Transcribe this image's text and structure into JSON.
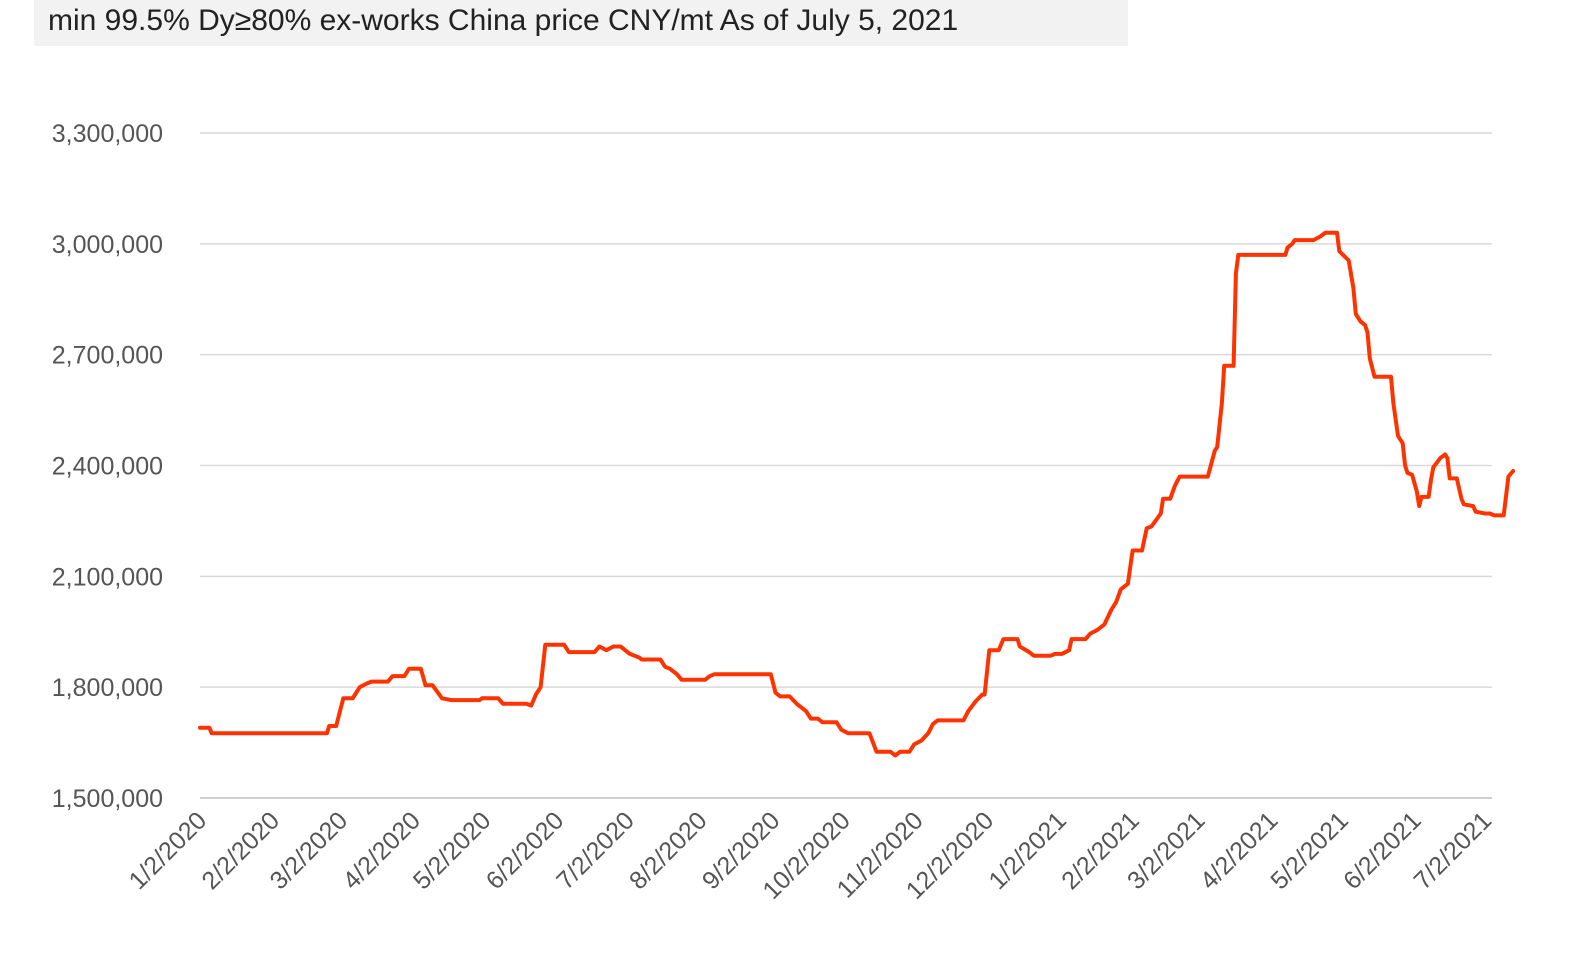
{
  "header": {
    "title": "min 99.5% Dy≥80%   ex-works China price   CNY/mt   As of July 5, 2021"
  },
  "chart_data": {
    "type": "line",
    "title": "min 99.5% Dy≥80%   ex-works China price   CNY/mt   As of July 5, 2021",
    "xlabel": "",
    "ylabel": "",
    "ylim": [
      1500000,
      3300000
    ],
    "yticks": [
      1500000,
      1800000,
      2100000,
      2400000,
      2700000,
      3000000,
      3300000
    ],
    "ytick_labels": [
      "1,500,000",
      "1,800,000",
      "2,100,000",
      "2,400,000",
      "2,700,000",
      "3,000,000",
      "3,300,000"
    ],
    "xlim": [
      "2020-01-02",
      "2021-07-05"
    ],
    "xticks": [
      "2020-01-02",
      "2020-02-02",
      "2020-03-02",
      "2020-04-02",
      "2020-05-02",
      "2020-06-02",
      "2020-07-02",
      "2020-08-02",
      "2020-09-02",
      "2020-10-02",
      "2020-11-02",
      "2020-12-02",
      "2021-01-02",
      "2021-02-02",
      "2021-03-02",
      "2021-04-02",
      "2021-05-02",
      "2021-06-02",
      "2021-07-02"
    ],
    "xtick_labels": [
      "1/2/2020",
      "2/2/2020",
      "3/2/2020",
      "4/2/2020",
      "5/2/2020",
      "6/2/2020",
      "7/2/2020",
      "8/2/2020",
      "9/2/2020",
      "10/2/2020",
      "11/2/2020",
      "12/2/2020",
      "1/2/2021",
      "2/2/2021",
      "3/2/2021",
      "4/2/2021",
      "5/2/2021",
      "6/2/2021",
      "7/2/2021"
    ],
    "grid": "horizontal",
    "colors": {
      "line": "#ff3300",
      "grid": "#d9d9d9",
      "axis": "#bfbfbf"
    },
    "series": [
      {
        "points": [
          [
            "2020-01-02",
            1690000
          ],
          [
            "2020-01-06",
            1690000
          ],
          [
            "2020-01-07",
            1675000
          ],
          [
            "2020-02-12",
            1675000
          ],
          [
            "2020-02-25",
            1675000
          ],
          [
            "2020-02-26",
            1695000
          ],
          [
            "2020-02-29",
            1695000
          ],
          [
            "2020-03-03",
            1770000
          ],
          [
            "2020-03-07",
            1770000
          ],
          [
            "2020-03-10",
            1800000
          ],
          [
            "2020-03-13",
            1810000
          ],
          [
            "2020-03-15",
            1815000
          ],
          [
            "2020-03-22",
            1815000
          ],
          [
            "2020-03-24",
            1830000
          ],
          [
            "2020-03-29",
            1830000
          ],
          [
            "2020-03-31",
            1850000
          ],
          [
            "2020-04-05",
            1850000
          ],
          [
            "2020-04-07",
            1805000
          ],
          [
            "2020-04-10",
            1805000
          ],
          [
            "2020-04-14",
            1770000
          ],
          [
            "2020-04-18",
            1765000
          ],
          [
            "2020-04-30",
            1765000
          ],
          [
            "2020-05-01",
            1770000
          ],
          [
            "2020-05-08",
            1770000
          ],
          [
            "2020-05-10",
            1755000
          ],
          [
            "2020-05-20",
            1755000
          ],
          [
            "2020-05-22",
            1750000
          ],
          [
            "2020-05-24",
            1780000
          ],
          [
            "2020-05-26",
            1800000
          ],
          [
            "2020-05-28",
            1915000
          ],
          [
            "2020-06-02",
            1915000
          ],
          [
            "2020-06-05",
            1915000
          ],
          [
            "2020-06-07",
            1895000
          ],
          [
            "2020-06-18",
            1895000
          ],
          [
            "2020-06-20",
            1910000
          ],
          [
            "2020-06-23",
            1900000
          ],
          [
            "2020-06-26",
            1910000
          ],
          [
            "2020-06-29",
            1910000
          ],
          [
            "2020-07-03",
            1890000
          ],
          [
            "2020-07-07",
            1880000
          ],
          [
            "2020-07-08",
            1875000
          ],
          [
            "2020-07-16",
            1875000
          ],
          [
            "2020-07-18",
            1855000
          ],
          [
            "2020-07-20",
            1850000
          ],
          [
            "2020-07-23",
            1835000
          ],
          [
            "2020-07-25",
            1820000
          ],
          [
            "2020-08-04",
            1820000
          ],
          [
            "2020-08-06",
            1830000
          ],
          [
            "2020-08-08",
            1835000
          ],
          [
            "2020-09-01",
            1835000
          ],
          [
            "2020-09-03",
            1785000
          ],
          [
            "2020-09-05",
            1775000
          ],
          [
            "2020-09-09",
            1775000
          ],
          [
            "2020-09-12",
            1755000
          ],
          [
            "2020-09-16",
            1735000
          ],
          [
            "2020-09-18",
            1715000
          ],
          [
            "2020-09-21",
            1715000
          ],
          [
            "2020-09-23",
            1705000
          ],
          [
            "2020-09-29",
            1705000
          ],
          [
            "2020-10-01",
            1685000
          ],
          [
            "2020-10-04",
            1675000
          ],
          [
            "2020-10-13",
            1675000
          ],
          [
            "2020-10-16",
            1625000
          ],
          [
            "2020-10-22",
            1625000
          ],
          [
            "2020-10-24",
            1615000
          ],
          [
            "2020-10-26",
            1625000
          ],
          [
            "2020-10-30",
            1625000
          ],
          [
            "2020-11-01",
            1645000
          ],
          [
            "2020-11-04",
            1655000
          ],
          [
            "2020-11-07",
            1675000
          ],
          [
            "2020-11-09",
            1700000
          ],
          [
            "2020-11-11",
            1710000
          ],
          [
            "2020-11-22",
            1710000
          ],
          [
            "2020-11-24",
            1735000
          ],
          [
            "2020-11-27",
            1760000
          ],
          [
            "2020-11-30",
            1780000
          ],
          [
            "2020-12-01",
            1780000
          ],
          [
            "2020-12-03",
            1900000
          ],
          [
            "2020-12-07",
            1900000
          ],
          [
            "2020-12-09",
            1930000
          ],
          [
            "2020-12-15",
            1930000
          ],
          [
            "2020-12-16",
            1910000
          ],
          [
            "2020-12-20",
            1895000
          ],
          [
            "2020-12-22",
            1885000
          ],
          [
            "2020-12-29",
            1885000
          ],
          [
            "2020-12-31",
            1890000
          ],
          [
            "2021-01-03",
            1890000
          ],
          [
            "2021-01-06",
            1900000
          ],
          [
            "2021-01-07",
            1930000
          ],
          [
            "2021-01-13",
            1930000
          ],
          [
            "2021-01-15",
            1945000
          ],
          [
            "2021-01-18",
            1955000
          ],
          [
            "2021-01-21",
            1970000
          ],
          [
            "2021-01-24",
            2010000
          ],
          [
            "2021-01-26",
            2030000
          ],
          [
            "2021-01-28",
            2065000
          ],
          [
            "2021-01-31",
            2080000
          ],
          [
            "2021-02-02",
            2170000
          ],
          [
            "2021-02-06",
            2170000
          ],
          [
            "2021-02-08",
            2230000
          ],
          [
            "2021-02-10",
            2235000
          ],
          [
            "2021-02-14",
            2270000
          ],
          [
            "2021-02-15",
            2310000
          ],
          [
            "2021-02-18",
            2310000
          ],
          [
            "2021-02-20",
            2345000
          ],
          [
            "2021-02-22",
            2370000
          ],
          [
            "2021-03-06",
            2370000
          ],
          [
            "2021-03-09",
            2440000
          ],
          [
            "2021-03-10",
            2450000
          ],
          [
            "2021-03-12",
            2570000
          ],
          [
            "2021-03-13",
            2670000
          ],
          [
            "2021-03-17",
            2670000
          ],
          [
            "2021-03-18",
            2920000
          ],
          [
            "2021-03-19",
            2970000
          ],
          [
            "2021-04-08",
            2970000
          ],
          [
            "2021-04-09",
            2990000
          ],
          [
            "2021-04-11",
            3000000
          ],
          [
            "2021-04-12",
            3010000
          ],
          [
            "2021-04-20",
            3010000
          ],
          [
            "2021-04-23",
            3020000
          ],
          [
            "2021-04-25",
            3030000
          ],
          [
            "2021-04-30",
            3030000
          ],
          [
            "2021-05-01",
            2980000
          ],
          [
            "2021-05-05",
            2955000
          ],
          [
            "2021-05-07",
            2880000
          ],
          [
            "2021-05-08",
            2810000
          ],
          [
            "2021-05-10",
            2790000
          ],
          [
            "2021-05-12",
            2780000
          ],
          [
            "2021-05-13",
            2760000
          ],
          [
            "2021-05-14",
            2690000
          ],
          [
            "2021-05-16",
            2640000
          ],
          [
            "2021-05-23",
            2640000
          ],
          [
            "2021-05-24",
            2570000
          ],
          [
            "2021-05-26",
            2480000
          ],
          [
            "2021-05-28",
            2460000
          ],
          [
            "2021-05-29",
            2400000
          ],
          [
            "2021-05-30",
            2380000
          ],
          [
            "2021-06-01",
            2375000
          ],
          [
            "2021-06-03",
            2330000
          ],
          [
            "2021-06-04",
            2290000
          ],
          [
            "2021-06-05",
            2315000
          ],
          [
            "2021-06-08",
            2315000
          ],
          [
            "2021-06-09",
            2360000
          ],
          [
            "2021-06-10",
            2395000
          ],
          [
            "2021-06-13",
            2420000
          ],
          [
            "2021-06-15",
            2430000
          ],
          [
            "2021-06-16",
            2420000
          ],
          [
            "2021-06-17",
            2365000
          ],
          [
            "2021-06-20",
            2365000
          ],
          [
            "2021-06-22",
            2310000
          ],
          [
            "2021-06-23",
            2295000
          ],
          [
            "2021-06-27",
            2290000
          ],
          [
            "2021-06-28",
            2275000
          ],
          [
            "2021-07-02",
            2270000
          ],
          [
            "2021-07-04",
            2270000
          ],
          [
            "2021-07-06",
            2265000
          ],
          [
            "2021-07-10",
            2265000
          ],
          [
            "2021-07-12",
            2370000
          ],
          [
            "2021-07-14",
            2385000
          ]
        ]
      }
    ]
  }
}
